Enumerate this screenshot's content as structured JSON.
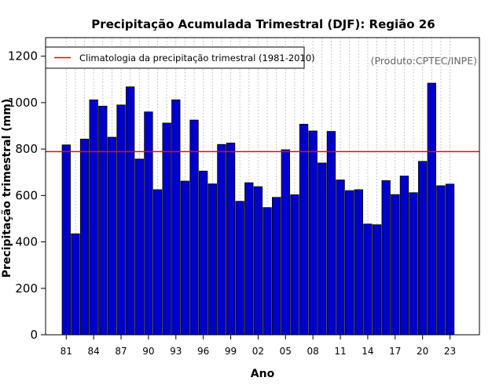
{
  "chart_data": {
    "type": "bar",
    "title": "Precipitação Acumulada Trimestral (DJF): Região 26",
    "xlabel": "Ano",
    "ylabel": "Precipitação trimestral (mm)",
    "ylim": [
      0,
      1280
    ],
    "y_ticks": [
      0,
      200,
      400,
      600,
      800,
      1000,
      1200
    ],
    "years": [
      1981,
      1982,
      1983,
      1984,
      1985,
      1986,
      1987,
      1988,
      1989,
      1990,
      1991,
      1992,
      1993,
      1994,
      1995,
      1996,
      1997,
      1998,
      1999,
      2000,
      2001,
      2002,
      2003,
      2004,
      2005,
      2006,
      2007,
      2008,
      2009,
      2010,
      2011,
      2012,
      2013,
      2014,
      2015,
      2016,
      2017,
      2018,
      2019,
      2020,
      2021,
      2022,
      2023
    ],
    "x_tick_labels": [
      "81",
      "84",
      "87",
      "90",
      "93",
      "96",
      "99",
      "02",
      "05",
      "08",
      "11",
      "14",
      "17",
      "20",
      "23"
    ],
    "x_tick_years": [
      1981,
      1984,
      1987,
      1990,
      1993,
      1996,
      1999,
      2002,
      2005,
      2008,
      2011,
      2014,
      2017,
      2020,
      2023
    ],
    "values": [
      818,
      435,
      843,
      1012,
      985,
      851,
      990,
      1068,
      757,
      960,
      625,
      912,
      1012,
      662,
      925,
      705,
      650,
      820,
      826,
      575,
      655,
      638,
      548,
      592,
      797,
      603,
      907,
      878,
      740,
      876,
      667,
      621,
      625,
      477,
      474,
      664,
      604,
      684,
      612,
      747,
      1084,
      642,
      649
    ],
    "bar_color": "#0000cc",
    "bar_edge_color": "#000000",
    "climatology": {
      "label": "Climatologia da precipitação trimestral (1981-2010)",
      "value": 789,
      "color": "#ff0000"
    },
    "grid": "vertical dotted",
    "legend_position": "top-left",
    "credit": "(Produto:CPTEC/INPE)"
  }
}
